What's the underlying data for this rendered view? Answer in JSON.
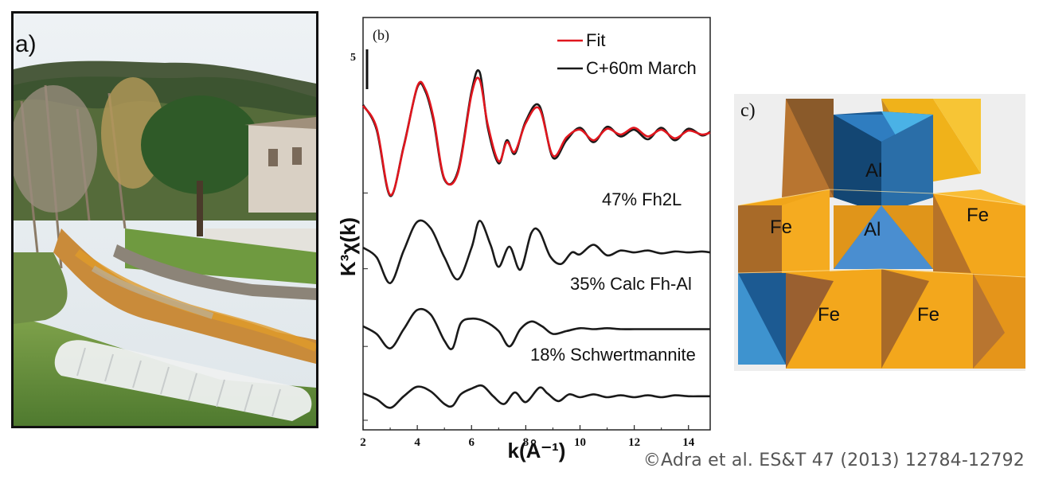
{
  "panels": {
    "a": {
      "label": "a)"
    },
    "c": {
      "label": "c)",
      "atoms": [
        "Al",
        "Al",
        "Fe",
        "Fe",
        "Fe",
        "Fe"
      ]
    }
  },
  "copyright": "©Adra et al. ES&T 47 (2013) 12784-12792",
  "chart_data": {
    "type": "line",
    "panel_label": "(b)",
    "xlabel": "k(Å⁻¹)",
    "ylabel": "K³χ(k)",
    "xlim": [
      2,
      14.8
    ],
    "xticks": [
      2,
      4,
      6,
      8,
      10,
      12,
      14
    ],
    "scale_bar_label": "5",
    "legend": {
      "position": "top-right",
      "entries": [
        "Fit",
        "C+60m March"
      ]
    },
    "series": [
      {
        "name": "Fit",
        "color": "#e0161e",
        "offset": 0,
        "x": [
          2.0,
          2.5,
          3.0,
          3.5,
          4.0,
          4.3,
          4.6,
          5.0,
          5.5,
          6.0,
          6.3,
          6.6,
          7.0,
          7.3,
          7.6,
          8.0,
          8.5,
          9.0,
          9.5,
          10.0,
          10.5,
          11.0,
          11.5,
          12.0,
          12.5,
          13.0,
          13.5,
          14.0,
          14.5,
          14.8
        ],
        "y": [
          2.8,
          0.5,
          -6.5,
          -1.5,
          4.8,
          4.5,
          1.5,
          -4.8,
          -4.2,
          4.0,
          5.5,
          0.8,
          -3.0,
          -1.0,
          -2.0,
          1.0,
          2.5,
          -2.4,
          -0.5,
          0.3,
          -0.8,
          0.4,
          -0.2,
          0.5,
          -0.4,
          0.3,
          -0.6,
          0.2,
          -0.2,
          0.0
        ]
      },
      {
        "name": "C+60m March",
        "color": "#1a1a1a",
        "offset": 0,
        "x": [
          2.0,
          2.5,
          3.0,
          3.5,
          4.0,
          4.3,
          4.6,
          5.0,
          5.5,
          6.0,
          6.3,
          6.6,
          7.0,
          7.3,
          7.6,
          8.0,
          8.5,
          9.0,
          9.5,
          10.0,
          10.5,
          11.0,
          11.5,
          12.0,
          12.5,
          13.0,
          13.5,
          14.0,
          14.5,
          14.8
        ],
        "y": [
          2.9,
          0.3,
          -6.6,
          -1.4,
          4.7,
          4.3,
          1.2,
          -4.9,
          -4.0,
          4.3,
          6.3,
          0.5,
          -3.2,
          -0.8,
          -2.2,
          1.2,
          2.8,
          -2.6,
          -0.8,
          0.5,
          -1.0,
          0.6,
          -0.4,
          0.3,
          -0.7,
          0.5,
          -0.8,
          0.4,
          -0.3,
          0.1
        ]
      },
      {
        "name": "47% Fh2L",
        "color": "#1a1a1a",
        "offset": -12.5,
        "x": [
          2.0,
          2.5,
          3.0,
          3.5,
          4.0,
          4.5,
          5.0,
          5.5,
          6.0,
          6.3,
          6.7,
          7.0,
          7.4,
          7.8,
          8.2,
          8.5,
          8.9,
          9.3,
          9.7,
          10.0,
          10.5,
          11.0,
          11.5,
          12.0,
          12.5,
          13.0,
          13.5,
          14.0,
          14.5,
          14.8
        ],
        "y": [
          0.5,
          -0.5,
          -3.2,
          0.2,
          3.2,
          2.5,
          -0.5,
          -2.8,
          0.5,
          3.3,
          0.8,
          -1.5,
          0.6,
          -1.8,
          2.0,
          2.2,
          -0.4,
          -1.2,
          0.0,
          -0.2,
          0.8,
          -0.3,
          0.2,
          0.0,
          0.2,
          -0.1,
          0.1,
          0.0,
          0.1,
          0.0
        ]
      },
      {
        "name": "35% Calc Fh-Al",
        "color": "#1a1a1a",
        "offset": -20.5,
        "x": [
          2.0,
          2.5,
          3.0,
          3.5,
          4.0,
          4.5,
          5.0,
          5.3,
          5.6,
          6.0,
          6.5,
          7.0,
          7.4,
          7.8,
          8.2,
          8.6,
          9.0,
          9.5,
          10.0,
          10.5,
          11.0,
          11.5,
          12.0,
          12.5,
          13.0,
          13.5,
          14.0,
          14.5,
          14.8
        ],
        "y": [
          0.3,
          -0.5,
          -2.0,
          0.0,
          2.0,
          1.5,
          -1.2,
          -2.0,
          0.6,
          1.1,
          0.8,
          -0.2,
          -1.8,
          0.0,
          0.8,
          0.3,
          -0.5,
          -0.2,
          0.1,
          0.0,
          0.1,
          0.0,
          0.0,
          0.0,
          0.0,
          0.0,
          0.0,
          0.0,
          0.0
        ]
      },
      {
        "name": "18% Schwertmannite",
        "color": "#1a1a1a",
        "offset": -27.5,
        "x": [
          2.0,
          2.5,
          3.0,
          3.5,
          4.0,
          4.5,
          5.0,
          5.3,
          5.6,
          6.0,
          6.4,
          6.8,
          7.2,
          7.6,
          8.0,
          8.5,
          8.8,
          9.2,
          9.6,
          10.0,
          10.5,
          11.0,
          11.5,
          12.0,
          12.5,
          13.0,
          13.5,
          14.0,
          14.5,
          14.8
        ],
        "y": [
          0.3,
          -0.3,
          -1.2,
          0.0,
          1.0,
          0.5,
          -0.8,
          -1.0,
          0.2,
          0.8,
          1.1,
          0.0,
          -0.8,
          0.4,
          -0.6,
          0.9,
          0.3,
          -0.5,
          0.2,
          -0.1,
          0.2,
          -0.1,
          0.1,
          -0.1,
          0.1,
          -0.1,
          0.1,
          0.0,
          0.0,
          0.0
        ]
      }
    ],
    "component_labels": [
      "47% Fh2L",
      "35% Calc Fh-Al",
      "18% Schwertmannite"
    ]
  }
}
